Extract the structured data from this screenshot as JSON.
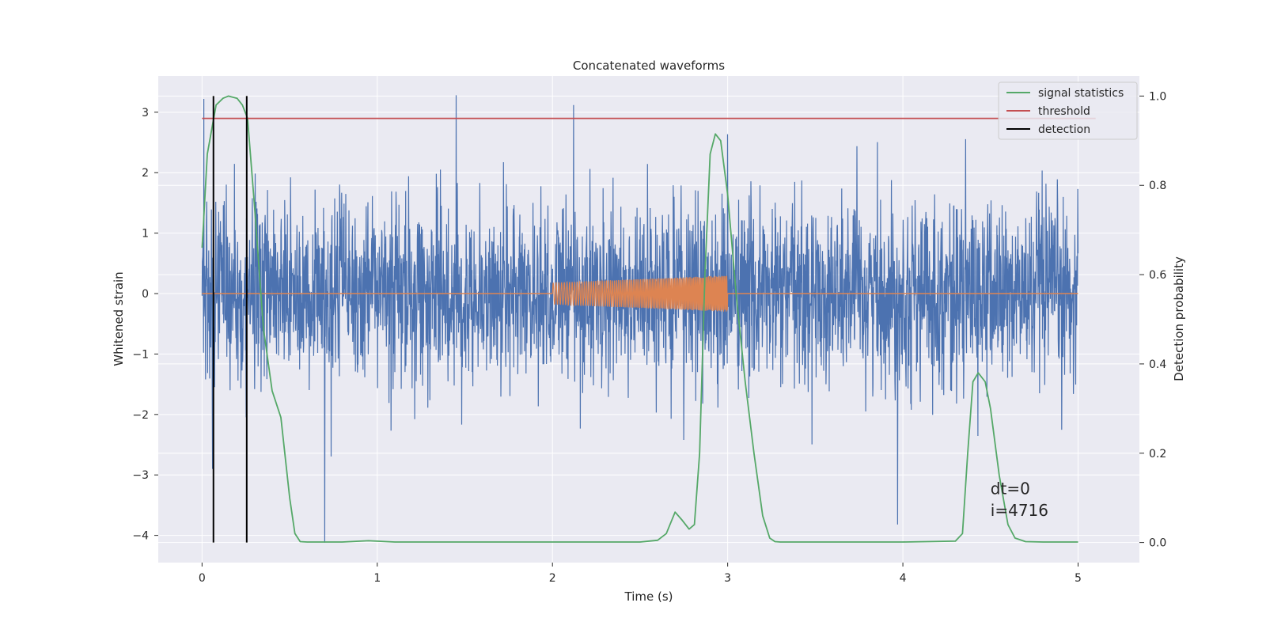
{
  "chart_data": {
    "type": "line",
    "title": "Concatenated waveforms",
    "xlabel": "Time (s)",
    "ylabel_left": "Whitened strain",
    "ylabel_right": "Detection probability",
    "xlim": [
      -0.25,
      5.35
    ],
    "ylim_left": [
      -4.45,
      3.6
    ],
    "ylim_right": [
      -0.045,
      1.045
    ],
    "x_ticks": [
      0,
      1,
      2,
      3,
      4,
      5
    ],
    "x_tick_labels": [
      "0",
      "1",
      "2",
      "3",
      "4",
      "5"
    ],
    "y_left_ticks": [
      -4,
      -3,
      -2,
      -1,
      0,
      1,
      2,
      3
    ],
    "y_left_tick_labels": [
      "−4",
      "−3",
      "−2",
      "−1",
      "0",
      "1",
      "2",
      "3"
    ],
    "y_right_ticks": [
      0.0,
      0.2,
      0.4,
      0.6,
      0.8,
      1.0
    ],
    "y_right_tick_labels": [
      "0.0",
      "0.2",
      "0.4",
      "0.6",
      "0.8",
      "1.0"
    ],
    "grid": true,
    "legend_position": "top-right",
    "series": [
      {
        "name": "",
        "axis": "left",
        "color": "#4c72b0",
        "kind": "noise",
        "x_range": [
          0,
          5
        ],
        "spread_std": 0.75,
        "min": -4.12,
        "max": 3.28,
        "peaks": [
          [
            0.01,
            3.22
          ],
          [
            0.06,
            -2.9
          ],
          [
            1.45,
            3.28
          ],
          [
            0.7,
            -4.12
          ],
          [
            2.12,
            3.12
          ],
          [
            3.97,
            -3.82
          ]
        ]
      },
      {
        "name": "",
        "axis": "left",
        "color": "#dd8452",
        "kind": "chirp",
        "x_range": [
          2.0,
          3.0
        ],
        "amplitude_start": 0.18,
        "amplitude_end": 0.3,
        "baseline": 0
      },
      {
        "name": "signal statistics",
        "axis": "right",
        "color": "#55a868",
        "x": [
          0,
          0.03,
          0.08,
          0.12,
          0.15,
          0.2,
          0.23,
          0.26,
          0.3,
          0.35,
          0.4,
          0.45,
          0.5,
          0.53,
          0.56,
          0.6,
          0.7,
          0.8,
          0.95,
          1.1,
          1.5,
          2.0,
          2.5,
          2.6,
          2.65,
          2.7,
          2.74,
          2.78,
          2.81,
          2.84,
          2.87,
          2.9,
          2.93,
          2.96,
          3.0,
          3.05,
          3.1,
          3.15,
          3.2,
          3.24,
          3.27,
          3.3,
          3.5,
          4.0,
          4.3,
          4.34,
          4.37,
          4.4,
          4.43,
          4.47,
          4.5,
          4.55,
          4.6,
          4.64,
          4.7,
          4.8,
          5.0
        ],
        "y": [
          0.66,
          0.87,
          0.98,
          0.995,
          1.0,
          0.995,
          0.98,
          0.95,
          0.75,
          0.48,
          0.34,
          0.28,
          0.1,
          0.02,
          0.002,
          0.001,
          0.001,
          0.001,
          0.004,
          0.001,
          0.001,
          0.001,
          0.001,
          0.005,
          0.02,
          0.068,
          0.05,
          0.03,
          0.04,
          0.2,
          0.6,
          0.87,
          0.915,
          0.9,
          0.78,
          0.55,
          0.36,
          0.2,
          0.06,
          0.01,
          0.002,
          0.001,
          0.001,
          0.001,
          0.003,
          0.02,
          0.2,
          0.36,
          0.38,
          0.36,
          0.3,
          0.15,
          0.04,
          0.01,
          0.002,
          0.001,
          0.001
        ]
      },
      {
        "name": "threshold",
        "axis": "right",
        "color": "#c44e52",
        "x": [
          0,
          5.1
        ],
        "y": [
          0.95,
          0.95
        ]
      },
      {
        "name": "detection",
        "axis": "right",
        "color": "#000000",
        "kind": "vlines",
        "x": [
          0.065,
          0.255
        ],
        "ymin": 0.0,
        "ymax": 1.0
      }
    ],
    "annotations": [
      {
        "text": "dt=0",
        "x": 4.5,
        "y": -3.32
      },
      {
        "text": "i=4716",
        "x": 4.5,
        "y": -3.68
      }
    ]
  }
}
